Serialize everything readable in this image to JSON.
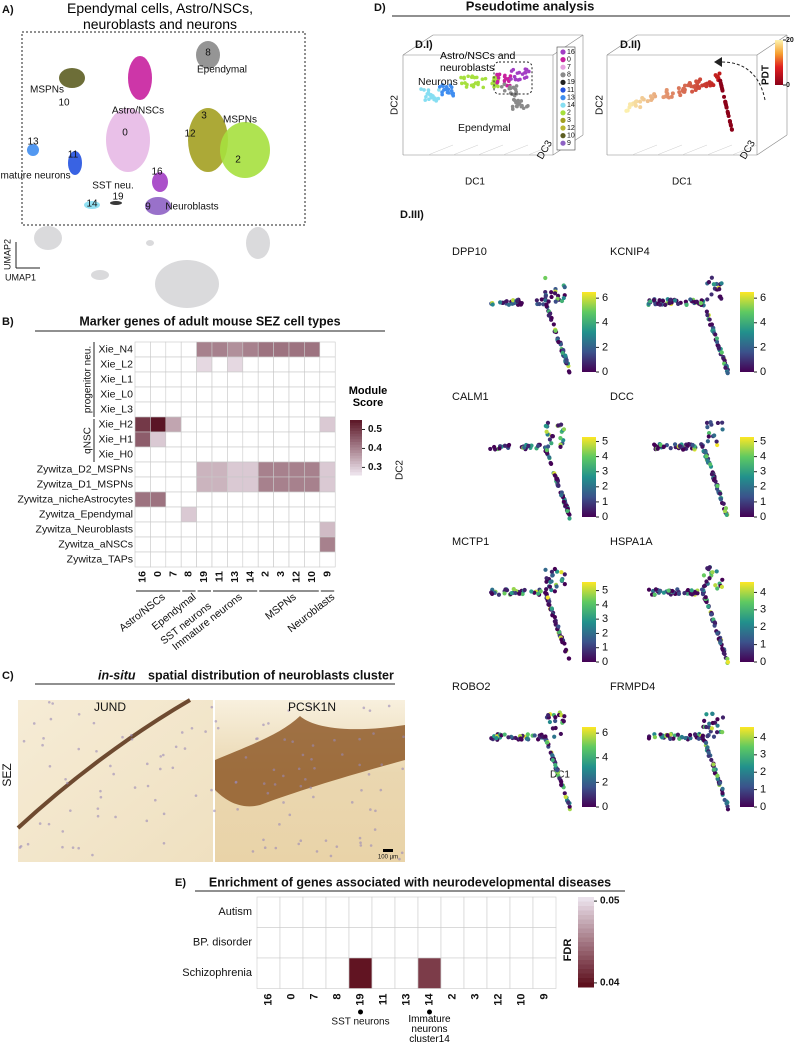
{
  "panel_a": {
    "label": "A)",
    "title": "Ependymal cells, Astro/NSCs, neuroblasts and neurons",
    "axis_y": "UMAP2",
    "axis_x": "UMAP1",
    "cluster_labels": [
      "8",
      "Ependymal",
      "MSPNs",
      "10",
      "Astro/NSCs",
      "0",
      "3",
      "12",
      "MSPNs",
      "2",
      "13",
      "11",
      "Immature neurons",
      "SST neu.",
      "19",
      "14",
      "16",
      "9",
      "Neuroblasts"
    ]
  },
  "panel_b": {
    "label": "B)",
    "title": "Marker genes of adult mouse SEZ cell types",
    "type": "heatmap",
    "rows": [
      "Xie_N4",
      "Xie_L2",
      "Xie_L1",
      "Xie_L0",
      "Xie_L3",
      "Xie_H2",
      "Xie_H1",
      "Xie_H0",
      "Zywitza_D2_MSPNs",
      "Zywitza_D1_MSPNs",
      "Zywitza_nicheAstrocytes",
      "Zywitza_Ependymal",
      "Zywitza_Neuroblasts",
      "Zywitza_aNSCs",
      "Zywitza_TAPs"
    ],
    "row_groups": [
      "progenitor neu.",
      "qNSC"
    ],
    "columns": [
      "16",
      "0",
      "7",
      "8",
      "19",
      "11",
      "13",
      "14",
      "2",
      "3",
      "12",
      "10",
      "9"
    ],
    "column_groups": [
      "Astro/NSCs",
      "Ependymal",
      "SST neurons",
      "Immature neurons",
      "MSPNs",
      "Neuroblasts"
    ],
    "values": [
      [
        null,
        null,
        null,
        null,
        0.4,
        0.4,
        0.38,
        0.4,
        0.42,
        0.42,
        0.42,
        0.42,
        null
      ],
      [
        null,
        null,
        null,
        null,
        0.28,
        null,
        0.28,
        null,
        null,
        null,
        null,
        null,
        null
      ],
      [
        null,
        null,
        null,
        null,
        null,
        null,
        null,
        null,
        null,
        null,
        null,
        null,
        null
      ],
      [
        null,
        null,
        null,
        null,
        null,
        null,
        null,
        null,
        null,
        null,
        null,
        null,
        null
      ],
      [
        null,
        null,
        null,
        null,
        null,
        null,
        null,
        null,
        null,
        null,
        null,
        null,
        null
      ],
      [
        0.5,
        0.55,
        0.35,
        null,
        null,
        null,
        null,
        null,
        null,
        null,
        null,
        null,
        0.3
      ],
      [
        0.45,
        0.3,
        null,
        null,
        null,
        null,
        null,
        null,
        null,
        null,
        null,
        null,
        null
      ],
      [
        null,
        null,
        null,
        null,
        null,
        null,
        null,
        null,
        null,
        null,
        null,
        null,
        null
      ],
      [
        null,
        null,
        null,
        null,
        0.33,
        0.33,
        0.3,
        0.3,
        0.4,
        0.4,
        0.4,
        0.4,
        0.3
      ],
      [
        null,
        null,
        null,
        null,
        0.33,
        0.33,
        0.3,
        0.3,
        0.4,
        0.4,
        0.4,
        0.4,
        0.3
      ],
      [
        0.42,
        0.42,
        null,
        null,
        null,
        null,
        null,
        null,
        null,
        null,
        null,
        null,
        null
      ],
      [
        null,
        null,
        null,
        0.3,
        null,
        null,
        null,
        null,
        null,
        null,
        null,
        null,
        null
      ],
      [
        null,
        null,
        null,
        null,
        null,
        null,
        null,
        null,
        null,
        null,
        null,
        null,
        0.32
      ],
      [
        null,
        null,
        null,
        null,
        null,
        null,
        null,
        null,
        null,
        null,
        null,
        null,
        0.4
      ],
      [
        null,
        null,
        null,
        null,
        null,
        null,
        null,
        null,
        null,
        null,
        null,
        null,
        null
      ]
    ],
    "legend_title": "Module Score",
    "lim": [
      0.26,
      0.55
    ],
    "ticks": [
      0.5,
      0.4,
      0.3
    ]
  },
  "panel_c": {
    "label": "C)",
    "title_italic": "in-situ",
    "title": "spatial distribution of neuroblasts cluster",
    "images": [
      "JUND",
      "PCSK1N"
    ],
    "region": "SEZ",
    "scale_bar": "100 µm"
  },
  "panel_d": {
    "label": "D)",
    "title": "Pseudotime analysis",
    "sub1": "D.I)",
    "sub2": "D.II)",
    "sub3": "D.III)",
    "annotations": [
      "Astro/NSCs and neuroblasts",
      "Neurons",
      "Ependymal"
    ],
    "axis_dc1": "DC1",
    "axis_dc2": "DC2",
    "axis_dc3": "DC3",
    "legend": [
      {
        "name": "16",
        "color": "#a23dc4"
      },
      {
        "name": "0",
        "color": "#c8209e"
      },
      {
        "name": "7",
        "color": "#e7a2e0"
      },
      {
        "name": "8",
        "color": "#8a8a8a"
      },
      {
        "name": "19",
        "color": "#222222"
      },
      {
        "name": "11",
        "color": "#2452e0"
      },
      {
        "name": "13",
        "color": "#3f8df0"
      },
      {
        "name": "14",
        "color": "#86def2"
      },
      {
        "name": "2",
        "color": "#a6e03e"
      },
      {
        "name": "3",
        "color": "#a3a021"
      },
      {
        "name": "12",
        "color": "#b9b635"
      },
      {
        "name": "10",
        "color": "#5d5e22"
      },
      {
        "name": "9",
        "color": "#8e62c4"
      }
    ],
    "pdt_title": "PDT",
    "pdt_lim": [
      0,
      20
    ],
    "pdt_ticks": [
      20,
      0
    ],
    "genes": [
      {
        "name": "DPP10",
        "lim": [
          0,
          6.5
        ],
        "ticks": [
          0,
          2,
          4,
          6
        ]
      },
      {
        "name": "KCNIP4",
        "lim": [
          0,
          6.5
        ],
        "ticks": [
          0,
          2,
          4,
          6
        ]
      },
      {
        "name": "CALM1",
        "lim": [
          0,
          5.3
        ],
        "ticks": [
          0,
          1,
          2,
          3,
          4,
          5
        ]
      },
      {
        "name": "DCC",
        "lim": [
          0,
          5.3
        ],
        "ticks": [
          0,
          1,
          2,
          3,
          4,
          5
        ]
      },
      {
        "name": "MCTP1",
        "lim": [
          0,
          5.6
        ],
        "ticks": [
          0,
          1,
          2,
          3,
          4,
          5
        ]
      },
      {
        "name": "HSPA1A",
        "lim": [
          0,
          4.6
        ],
        "ticks": [
          0,
          1,
          2,
          3,
          4
        ]
      },
      {
        "name": "ROBO2",
        "lim": [
          0,
          6.5
        ],
        "ticks": [
          0,
          2,
          4,
          6
        ]
      },
      {
        "name": "FRMPD4",
        "lim": [
          0,
          4.6
        ],
        "ticks": [
          0,
          1,
          2,
          3,
          4
        ]
      }
    ]
  },
  "panel_e": {
    "label": "E)",
    "title": "Enrichment of genes associated with neurodevelopmental diseases",
    "type": "heatmap",
    "rows": [
      "Autism",
      "BP. disorder",
      "Schizophrenia"
    ],
    "columns": [
      "16",
      "0",
      "7",
      "8",
      "19",
      "11",
      "13",
      "14",
      "2",
      "3",
      "12",
      "10",
      "9"
    ],
    "values": [
      [
        null,
        null,
        null,
        null,
        null,
        null,
        null,
        null,
        null,
        null,
        null,
        null,
        null
      ],
      [
        null,
        null,
        null,
        null,
        null,
        null,
        null,
        null,
        null,
        null,
        null,
        null,
        null
      ],
      [
        null,
        null,
        null,
        null,
        0.04,
        null,
        null,
        0.042,
        null,
        null,
        null,
        null,
        null
      ]
    ],
    "legend_title": "FDR",
    "lim": [
      0.0395,
      0.0505
    ],
    "ticks": [
      0.05,
      0.04
    ],
    "annotations": [
      "SST neurons",
      "Immature neurons cluster14"
    ]
  }
}
